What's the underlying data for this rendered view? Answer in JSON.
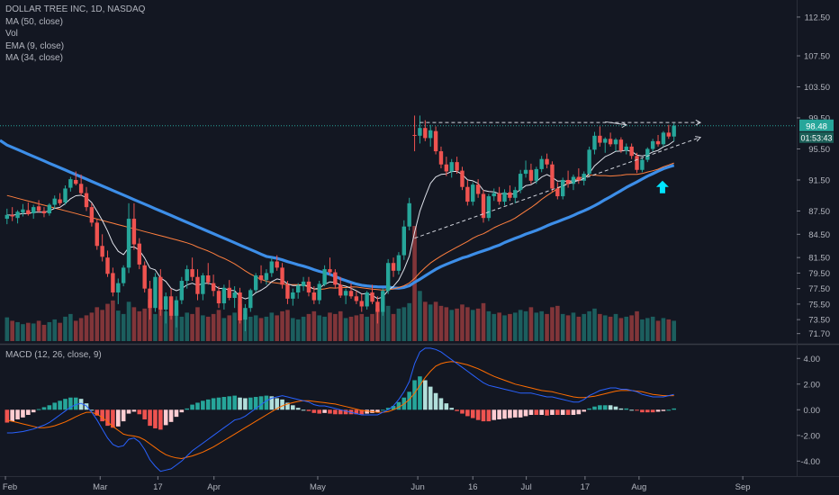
{
  "legend": {
    "symbol_line": "DOLLAR TREE INC, 1D, NASDAQ",
    "ma50": "MA (50, close)",
    "vol": "Vol",
    "ema9": "EMA (9, close)",
    "ma34": "MA (34, close)"
  },
  "macd_legend": "MACD (12, 26, close, 9)",
  "price_badges": {
    "last_price": "98.48",
    "countdown": "01:53:43"
  },
  "colors": {
    "background": "#131722",
    "up": "#26a69a",
    "down": "#ef5350",
    "ma50": "#3d8ee8",
    "ema9": "#e0e3eb",
    "ma34": "#ff7f3f",
    "macd_line": "#2962ff",
    "signal_line": "#ff6d00",
    "annotation_arrow": "#00e5ff"
  },
  "chart_data": [
    {
      "type": "candlestick",
      "title": "DOLLAR TREE INC, 1D, NASDAQ",
      "x_tick_labels": [
        "Feb",
        "Mar",
        "17",
        "Apr",
        "May",
        "Jun",
        "16",
        "Jul",
        "17",
        "Aug",
        "Sep"
      ],
      "y_tick_labels": [
        "112.50",
        "107.50",
        "103.50",
        "99.50",
        "95.50",
        "91.50",
        "87.50",
        "84.50",
        "81.50",
        "79.50",
        "77.50",
        "75.50",
        "73.50",
        "71.70"
      ],
      "ylim": [
        70.5,
        114
      ],
      "grid": false,
      "last_price": 98.48,
      "ohlc": [
        [
          86.5,
          87.8,
          85.8,
          87.0
        ],
        [
          87.0,
          88.0,
          86.2,
          86.8
        ],
        [
          86.6,
          87.6,
          85.9,
          87.4
        ],
        [
          87.3,
          88.4,
          86.8,
          87.7
        ],
        [
          87.6,
          88.6,
          86.9,
          87.1
        ],
        [
          87.2,
          88.3,
          86.5,
          88.0
        ],
        [
          88.1,
          88.9,
          87.3,
          87.5
        ],
        [
          87.5,
          88.0,
          86.7,
          87.2
        ],
        [
          87.2,
          88.5,
          86.9,
          88.3
        ],
        [
          88.3,
          89.5,
          87.8,
          89.1
        ],
        [
          89.0,
          89.8,
          88.2,
          88.5
        ],
        [
          88.6,
          90.8,
          88.3,
          90.4
        ],
        [
          90.5,
          91.9,
          90.0,
          91.6
        ],
        [
          91.5,
          92.6,
          90.8,
          91.0
        ],
        [
          91.0,
          92.2,
          89.5,
          89.8
        ],
        [
          89.8,
          90.6,
          87.5,
          88.0
        ],
        [
          88.0,
          88.5,
          85.5,
          86.0
        ],
        [
          86.0,
          86.5,
          82.5,
          83.0
        ],
        [
          83.0,
          84.5,
          81.0,
          81.6
        ],
        [
          81.5,
          82.4,
          79.0,
          79.4
        ],
        [
          79.5,
          80.2,
          76.5,
          77.0
        ],
        [
          77.0,
          78.8,
          75.5,
          78.2
        ],
        [
          78.2,
          80.5,
          77.8,
          80.2
        ],
        [
          80.2,
          88.5,
          79.5,
          86.5
        ],
        [
          86.5,
          88.5,
          82.5,
          83.2
        ],
        [
          83.3,
          84.0,
          80.0,
          80.6
        ],
        [
          80.5,
          81.0,
          77.0,
          77.5
        ],
        [
          77.5,
          78.5,
          73.5,
          75.0
        ],
        [
          75.0,
          79.5,
          74.5,
          79.0
        ],
        [
          79.0,
          80.0,
          74.0,
          74.8
        ],
        [
          74.8,
          77.0,
          73.0,
          76.5
        ],
        [
          76.5,
          77.5,
          73.5,
          74.0
        ],
        [
          74.0,
          76.5,
          72.5,
          76.0
        ],
        [
          76.0,
          79.0,
          75.5,
          78.5
        ],
        [
          78.5,
          80.5,
          77.5,
          80.0
        ],
        [
          80.0,
          81.5,
          78.5,
          79.0
        ],
        [
          79.0,
          80.0,
          76.0,
          76.8
        ],
        [
          76.8,
          79.5,
          76.0,
          79.2
        ],
        [
          79.2,
          80.8,
          78.0,
          78.3
        ],
        [
          78.2,
          79.3,
          76.5,
          77.2
        ],
        [
          77.2,
          77.8,
          75.0,
          75.6
        ],
        [
          75.6,
          78.0,
          74.8,
          77.6
        ],
        [
          77.6,
          78.6,
          76.0,
          76.3
        ],
        [
          76.3,
          77.8,
          75.0,
          77.0
        ],
        [
          77.0,
          77.6,
          73.0,
          73.4
        ],
        [
          73.5,
          75.5,
          72.0,
          75.0
        ],
        [
          75.0,
          77.5,
          74.5,
          77.3
        ],
        [
          77.3,
          79.5,
          77.0,
          79.2
        ],
        [
          79.2,
          80.5,
          78.2,
          78.6
        ],
        [
          78.6,
          80.0,
          78.0,
          79.5
        ],
        [
          79.5,
          81.5,
          79.0,
          81.0
        ],
        [
          81.0,
          81.8,
          79.8,
          80.2
        ],
        [
          80.2,
          80.8,
          77.5,
          78.0
        ],
        [
          78.0,
          78.5,
          75.5,
          76.2
        ],
        [
          76.2,
          77.5,
          75.3,
          77.0
        ],
        [
          77.0,
          78.2,
          76.2,
          77.9
        ],
        [
          77.8,
          79.0,
          77.2,
          78.4
        ],
        [
          78.4,
          79.0,
          76.5,
          77.0
        ],
        [
          77.0,
          77.8,
          75.5,
          76.0
        ],
        [
          76.0,
          78.5,
          75.5,
          78.1
        ],
        [
          78.0,
          80.5,
          77.8,
          80.0
        ],
        [
          80.0,
          81.5,
          79.2,
          79.6
        ],
        [
          79.6,
          80.0,
          77.5,
          78.0
        ],
        [
          78.0,
          79.0,
          76.3,
          76.6
        ],
        [
          76.6,
          77.5,
          75.5,
          77.2
        ],
        [
          77.2,
          78.2,
          76.2,
          76.5
        ],
        [
          76.5,
          77.2,
          75.5,
          75.9
        ],
        [
          75.9,
          76.8,
          74.5,
          75.2
        ],
        [
          75.2,
          77.2,
          74.8,
          77.0
        ],
        [
          77.0,
          78.0,
          75.5,
          75.8
        ],
        [
          75.8,
          76.5,
          73.0,
          74.5
        ],
        [
          74.5,
          77.5,
          74.0,
          77.2
        ],
        [
          77.2,
          81.3,
          76.8,
          80.8
        ],
        [
          80.8,
          81.5,
          79.0,
          79.8
        ],
        [
          79.8,
          82.2,
          79.3,
          81.8
        ],
        [
          81.8,
          86.3,
          81.2,
          85.5
        ],
        [
          85.5,
          89.2,
          85.0,
          88.5
        ],
        [
          97.3,
          99.8,
          95.2,
          97.2
        ],
        [
          97.2,
          99.8,
          96.2,
          98.2
        ],
        [
          98.2,
          99.2,
          96.5,
          96.9
        ],
        [
          96.9,
          98.6,
          95.8,
          97.9
        ],
        [
          97.8,
          98.4,
          94.8,
          95.2
        ],
        [
          95.2,
          95.8,
          93.0,
          93.5
        ],
        [
          93.5,
          94.5,
          92.0,
          92.6
        ],
        [
          92.6,
          94.2,
          91.8,
          93.8
        ],
        [
          93.8,
          94.5,
          92.3,
          92.7
        ],
        [
          92.7,
          93.2,
          90.2,
          90.6
        ],
        [
          90.6,
          91.5,
          88.2,
          88.7
        ],
        [
          88.7,
          91.2,
          88.2,
          90.9
        ],
        [
          90.9,
          91.6,
          89.2,
          89.7
        ],
        [
          89.7,
          90.2,
          86.0,
          86.6
        ],
        [
          86.6,
          89.7,
          86.2,
          89.4
        ],
        [
          89.4,
          90.4,
          88.8,
          89.8
        ],
        [
          89.8,
          90.6,
          88.3,
          88.7
        ],
        [
          88.7,
          90.3,
          88.2,
          89.9
        ],
        [
          89.9,
          90.8,
          88.8,
          89.2
        ],
        [
          89.2,
          90.6,
          88.5,
          90.2
        ],
        [
          90.2,
          92.8,
          89.8,
          92.3
        ],
        [
          92.3,
          94.0,
          91.8,
          92.8
        ],
        [
          92.8,
          93.6,
          91.0,
          91.4
        ],
        [
          91.4,
          93.2,
          91.0,
          92.9
        ],
        [
          92.9,
          94.6,
          92.5,
          94.2
        ],
        [
          94.2,
          94.9,
          93.0,
          93.5
        ],
        [
          93.5,
          93.9,
          90.0,
          90.4
        ],
        [
          90.4,
          91.2,
          89.0,
          89.4
        ],
        [
          89.4,
          91.8,
          89.0,
          91.5
        ],
        [
          91.5,
          92.7,
          90.5,
          91.0
        ],
        [
          91.0,
          92.2,
          90.2,
          91.9
        ],
        [
          91.9,
          93.0,
          91.0,
          91.4
        ],
        [
          91.4,
          92.6,
          90.8,
          92.3
        ],
        [
          92.3,
          95.8,
          92.0,
          95.4
        ],
        [
          95.4,
          97.7,
          94.8,
          97.2
        ],
        [
          97.2,
          98.4,
          95.8,
          96.3
        ],
        [
          96.3,
          97.0,
          95.0,
          96.8
        ],
        [
          96.8,
          97.6,
          95.8,
          96.1
        ],
        [
          96.1,
          96.9,
          95.2,
          96.7
        ],
        [
          96.7,
          97.0,
          95.0,
          95.3
        ],
        [
          95.3,
          96.2,
          94.8,
          95.8
        ],
        [
          95.8,
          96.2,
          94.2,
          94.6
        ],
        [
          94.6,
          95.0,
          92.4,
          92.8
        ],
        [
          92.8,
          94.4,
          92.5,
          94.1
        ],
        [
          94.1,
          95.7,
          93.8,
          95.5
        ],
        [
          95.5,
          96.8,
          95.2,
          96.5
        ],
        [
          96.5,
          97.3,
          95.8,
          96.1
        ],
        [
          96.1,
          97.8,
          95.8,
          97.6
        ],
        [
          97.6,
          98.6,
          96.8,
          97.1
        ],
        [
          97.1,
          98.8,
          96.5,
          98.5
        ]
      ],
      "volume": [
        35,
        30,
        28,
        25,
        27,
        26,
        30,
        24,
        28,
        32,
        27,
        36,
        40,
        30,
        34,
        38,
        42,
        50,
        46,
        55,
        60,
        45,
        40,
        58,
        50,
        44,
        48,
        62,
        40,
        52,
        44,
        38,
        46,
        36,
        42,
        40,
        50,
        38,
        36,
        40,
        46,
        34,
        38,
        42,
        55,
        40,
        36,
        38,
        34,
        36,
        42,
        38,
        44,
        46,
        34,
        32,
        36,
        40,
        44,
        38,
        36,
        42,
        40,
        44,
        34,
        36,
        38,
        40,
        36,
        40,
        48,
        44,
        52,
        40,
        48,
        50,
        56,
        170,
        74,
        58,
        54,
        58,
        52,
        50,
        46,
        48,
        54,
        50,
        46,
        48,
        56,
        44,
        40,
        42,
        38,
        40,
        42,
        46,
        44,
        50,
        42,
        44,
        40,
        50,
        52,
        40,
        38,
        42,
        36,
        40,
        44,
        48,
        40,
        38,
        36,
        40,
        34,
        36,
        38,
        44,
        32,
        34,
        36,
        30,
        34,
        32,
        30
      ],
      "annotations": [
        {
          "type": "dashed-line",
          "label": "",
          "from": [
            78,
            98.9
          ],
          "to": [
            131,
            98.9
          ]
        },
        {
          "type": "dashed-line",
          "label": "",
          "from": [
            77,
            84.0
          ],
          "to": [
            131,
            97.0
          ]
        },
        {
          "type": "dashed-arrow",
          "label": "",
          "from": [
            113,
            99.0
          ],
          "to": [
            117,
            98.6
          ]
        },
        {
          "type": "arrow-up",
          "label": "",
          "at": [
            124,
            90.6
          ]
        }
      ]
    },
    {
      "type": "histogram+line",
      "title": "MACD (12, 26, close, 9)",
      "y_tick_labels": [
        "4.00",
        "2.00",
        "0.00",
        "-2.00",
        "-4.00"
      ],
      "ylim": [
        -5.1,
        5.0
      ],
      "series": [
        {
          "name": "MACD",
          "values": [
            -1.8,
            -1.8,
            -1.75,
            -1.7,
            -1.6,
            -1.5,
            -1.35,
            -1.2,
            -1.0,
            -0.7,
            -0.4,
            -0.1,
            0.2,
            0.4,
            0.5,
            0.3,
            -0.2,
            -0.8,
            -1.5,
            -2.2,
            -2.7,
            -2.9,
            -2.8,
            -2.3,
            -2.2,
            -2.5,
            -3.1,
            -3.9,
            -4.4,
            -4.8,
            -4.7,
            -4.6,
            -4.3,
            -4.0,
            -3.6,
            -3.2,
            -2.9,
            -2.6,
            -2.3,
            -2.0,
            -1.7,
            -1.4,
            -1.1,
            -0.8,
            -0.7,
            -0.5,
            -0.2,
            0.1,
            0.4,
            0.7,
            0.9,
            1.0,
            1.1,
            1.0,
            0.9,
            0.8,
            0.7,
            0.6,
            0.4,
            0.3,
            0.3,
            0.2,
            0.1,
            0.0,
            -0.1,
            -0.2,
            -0.3,
            -0.4,
            -0.4,
            -0.4,
            -0.4,
            -0.2,
            0.0,
            0.3,
            0.8,
            1.4,
            2.2,
            3.6,
            4.5,
            4.8,
            4.8,
            4.7,
            4.5,
            4.2,
            3.9,
            3.6,
            3.3,
            3.0,
            2.7,
            2.4,
            2.1,
            1.9,
            1.8,
            1.7,
            1.6,
            1.5,
            1.4,
            1.3,
            1.3,
            1.3,
            1.2,
            1.1,
            1.0,
            1.0,
            0.9,
            0.8,
            0.7,
            0.6,
            0.6,
            0.8,
            1.1,
            1.3,
            1.5,
            1.6,
            1.7,
            1.7,
            1.6,
            1.6,
            1.5,
            1.4,
            1.2,
            1.1,
            1.0,
            1.0,
            1.0,
            1.1,
            1.2
          ]
        },
        {
          "name": "Signal",
          "values": [
            -0.8,
            -0.9,
            -1.0,
            -1.1,
            -1.2,
            -1.3,
            -1.4,
            -1.4,
            -1.35,
            -1.25,
            -1.1,
            -0.95,
            -0.75,
            -0.55,
            -0.35,
            -0.2,
            -0.2,
            -0.35,
            -0.6,
            -0.95,
            -1.3,
            -1.6,
            -1.9,
            -2.0,
            -2.05,
            -2.15,
            -2.35,
            -2.65,
            -2.95,
            -3.25,
            -3.5,
            -3.65,
            -3.75,
            -3.8,
            -3.7,
            -3.6,
            -3.45,
            -3.3,
            -3.1,
            -2.9,
            -2.65,
            -2.4,
            -2.15,
            -1.9,
            -1.65,
            -1.4,
            -1.15,
            -0.9,
            -0.65,
            -0.4,
            -0.15,
            0.1,
            0.3,
            0.45,
            0.55,
            0.65,
            0.7,
            0.7,
            0.65,
            0.6,
            0.55,
            0.5,
            0.45,
            0.35,
            0.25,
            0.15,
            0.05,
            -0.05,
            -0.1,
            -0.15,
            -0.2,
            -0.2,
            -0.15,
            0.0,
            0.2,
            0.45,
            0.8,
            1.3,
            1.9,
            2.5,
            3.0,
            3.4,
            3.6,
            3.7,
            3.75,
            3.7,
            3.6,
            3.5,
            3.35,
            3.2,
            3.0,
            2.8,
            2.6,
            2.45,
            2.3,
            2.15,
            2.0,
            1.9,
            1.8,
            1.7,
            1.6,
            1.5,
            1.45,
            1.4,
            1.3,
            1.2,
            1.1,
            1.0,
            0.95,
            0.95,
            1.0,
            1.05,
            1.15,
            1.25,
            1.35,
            1.45,
            1.5,
            1.5,
            1.5,
            1.45,
            1.4,
            1.3,
            1.2,
            1.15,
            1.1,
            1.1,
            1.1
          ]
        }
      ]
    }
  ]
}
